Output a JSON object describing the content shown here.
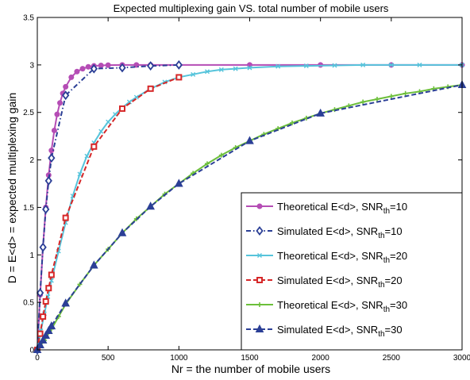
{
  "chart_data": {
    "type": "line",
    "title": "Expected multiplexing gain VS. total number of mobile users",
    "xlabel": "Nr = the number of mobile users",
    "ylabel": "D = E<d> = expected multiplexing gain",
    "xlim": [
      0,
      3000
    ],
    "ylim": [
      0,
      3.5
    ],
    "xticks": [
      "0",
      "500",
      "1000",
      "1500",
      "2000",
      "2500",
      "3000"
    ],
    "yticks": [
      "0",
      "0.5",
      "1",
      "1.5",
      "2",
      "2.5",
      "3",
      "3.5"
    ],
    "grid": false,
    "legend_position": "bottom-right",
    "legend": [
      {
        "prefix": "Theoretical E<d>, SNR",
        "sub": "th",
        "suffix": "=10"
      },
      {
        "prefix": "Simulated E<d>, SNR",
        "sub": "th",
        "suffix": "=10"
      },
      {
        "prefix": "Theoretical E<d>, SNR",
        "sub": "th",
        "suffix": "=20"
      },
      {
        "prefix": "Simulated E<d>, SNR",
        "sub": "th",
        "suffix": "=20"
      },
      {
        "prefix": "Theoretical E<d>, SNR",
        "sub": "th",
        "suffix": "=30"
      },
      {
        "prefix": "Simulated E<d>, SNR",
        "sub": "th",
        "suffix": "=30"
      }
    ],
    "series": [
      {
        "color": "#b54db5",
        "style": "solid",
        "marker": "dot",
        "x": [
          0,
          20,
          40,
          60,
          80,
          100,
          120,
          140,
          160,
          180,
          200,
          240,
          280,
          320,
          360,
          400,
          450,
          500,
          600,
          700,
          800,
          1000,
          1500,
          2000,
          2500,
          3000
        ],
        "y": [
          0,
          0.58,
          1.08,
          1.5,
          1.84,
          2.1,
          2.31,
          2.48,
          2.6,
          2.7,
          2.77,
          2.87,
          2.93,
          2.96,
          2.98,
          2.99,
          2.995,
          2.998,
          3.0,
          3.0,
          3.0,
          3.0,
          3.0,
          3.0,
          3.0,
          3.0
        ]
      },
      {
        "color": "#2b3f96",
        "style": "dashdot",
        "marker": "diamond",
        "x": [
          0,
          20,
          40,
          60,
          80,
          100,
          200,
          400,
          600,
          800,
          1000
        ],
        "y": [
          0,
          0.6,
          1.08,
          1.48,
          1.78,
          2.02,
          2.68,
          2.96,
          2.97,
          2.99,
          3.0
        ]
      },
      {
        "color": "#56c4db",
        "style": "solid",
        "marker": "x",
        "x": [
          0,
          25,
          50,
          75,
          100,
          150,
          200,
          250,
          300,
          350,
          400,
          450,
          500,
          550,
          600,
          650,
          700,
          800,
          900,
          1000,
          1100,
          1200,
          1300,
          1400,
          1500,
          1700,
          1900,
          2100,
          2300,
          2500,
          2700,
          3000
        ],
        "y": [
          0,
          0.2,
          0.38,
          0.56,
          0.73,
          1.04,
          1.34,
          1.62,
          1.85,
          2.04,
          2.18,
          2.3,
          2.4,
          2.48,
          2.55,
          2.61,
          2.66,
          2.75,
          2.82,
          2.87,
          2.9,
          2.93,
          2.95,
          2.96,
          2.97,
          2.985,
          2.99,
          2.995,
          3.0,
          3.0,
          3.0,
          3.0
        ]
      },
      {
        "color": "#d62728",
        "style": "dashed",
        "marker": "square",
        "x": [
          0,
          20,
          40,
          60,
          80,
          100,
          200,
          400,
          600,
          800,
          1000
        ],
        "y": [
          0,
          0.17,
          0.35,
          0.51,
          0.65,
          0.79,
          1.39,
          2.14,
          2.54,
          2.75,
          2.87
        ]
      },
      {
        "color": "#6cbf3a",
        "style": "solid",
        "marker": "plus",
        "x": [
          0,
          50,
          100,
          150,
          200,
          300,
          400,
          500,
          600,
          700,
          800,
          900,
          1000,
          1100,
          1200,
          1300,
          1400,
          1500,
          1600,
          1700,
          1800,
          1900,
          2000,
          2100,
          2200,
          2300,
          2400,
          2500,
          2600,
          2700,
          2800,
          2900,
          3000
        ],
        "y": [
          0,
          0.1,
          0.22,
          0.35,
          0.48,
          0.69,
          0.89,
          1.06,
          1.23,
          1.38,
          1.51,
          1.64,
          1.75,
          1.86,
          1.96,
          2.05,
          2.13,
          2.2,
          2.27,
          2.33,
          2.39,
          2.44,
          2.49,
          2.53,
          2.57,
          2.61,
          2.64,
          2.67,
          2.7,
          2.72,
          2.75,
          2.77,
          2.79
        ]
      },
      {
        "color": "#2b3f96",
        "style": "dashed",
        "marker": "triangle",
        "x": [
          0,
          20,
          40,
          60,
          80,
          100,
          200,
          400,
          600,
          800,
          1000,
          1500,
          2000,
          3000
        ],
        "y": [
          0,
          0.05,
          0.1,
          0.15,
          0.2,
          0.25,
          0.49,
          0.89,
          1.23,
          1.51,
          1.75,
          2.2,
          2.49,
          2.79
        ]
      }
    ]
  }
}
